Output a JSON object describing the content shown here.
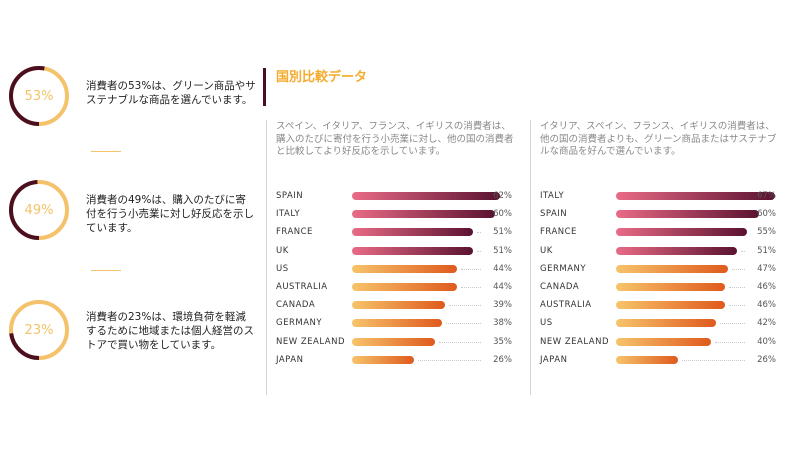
{
  "stats": [
    {
      "percent": "53%",
      "value": 0.53,
      "text": "消費者の53%は、グリーン商品やサステナブルな商品を選んでいます。"
    },
    {
      "percent": "49%",
      "value": 0.49,
      "text": "消費者の49%は、購入のたびに寄付を行う小売業に対し好反応を示しています。"
    },
    {
      "percent": "23%",
      "value": 0.23,
      "text": "消費者の23%は、環境負荷を軽減するために地域または個人経営のストアで買い物をしています。"
    }
  ],
  "section_title": "国別比較データ",
  "colors": {
    "ring_track": "#f3c26a",
    "ring_fill": "#4a0f20",
    "bar_top_start": "#e96b86",
    "bar_top_end": "#5a1230",
    "bar_low_start": "#f7c46a",
    "bar_low_end": "#df5a1e",
    "accent": "#f5ab2e"
  },
  "chart_data": [
    {
      "type": "bar",
      "orientation": "horizontal",
      "description_text": "スペイン、イタリア、フランス、イギリスの消費者は、購入のたびに寄付を行う小売業に対し、他の国の消費者と比較してより好反応を示しています。",
      "categories": [
        "SPAIN",
        "ITALY",
        "FRANCE",
        "UK",
        "US",
        "AUSTRALIA",
        "CANADA",
        "GERMANY",
        "NEW ZEALAND",
        "JAPAN"
      ],
      "values": [
        62,
        60,
        51,
        51,
        44,
        44,
        39,
        38,
        35,
        26
      ],
      "value_labels": [
        "62%",
        "60%",
        "51%",
        "51%",
        "44%",
        "44%",
        "39%",
        "38%",
        "35%",
        "26%"
      ],
      "highlight_top": 4
    },
    {
      "type": "bar",
      "orientation": "horizontal",
      "description_text": "イタリア、スペイン、フランス、イギリスの消費者は、他の国の消費者よりも、グリーン商品またはサステナブルな商品を好んで選んでいます。",
      "categories": [
        "ITALY",
        "SPAIN",
        "FRANCE",
        "UK",
        "GERMANY",
        "CANADA",
        "AUSTRALIA",
        "US",
        "NEW ZEALAND",
        "JAPAN"
      ],
      "values": [
        67,
        60,
        55,
        51,
        47,
        46,
        46,
        42,
        40,
        26
      ],
      "value_labels": [
        "67%",
        "60%",
        "55%",
        "51%",
        "47%",
        "46%",
        "46%",
        "42%",
        "40%",
        "26%"
      ],
      "highlight_top": 4
    }
  ]
}
